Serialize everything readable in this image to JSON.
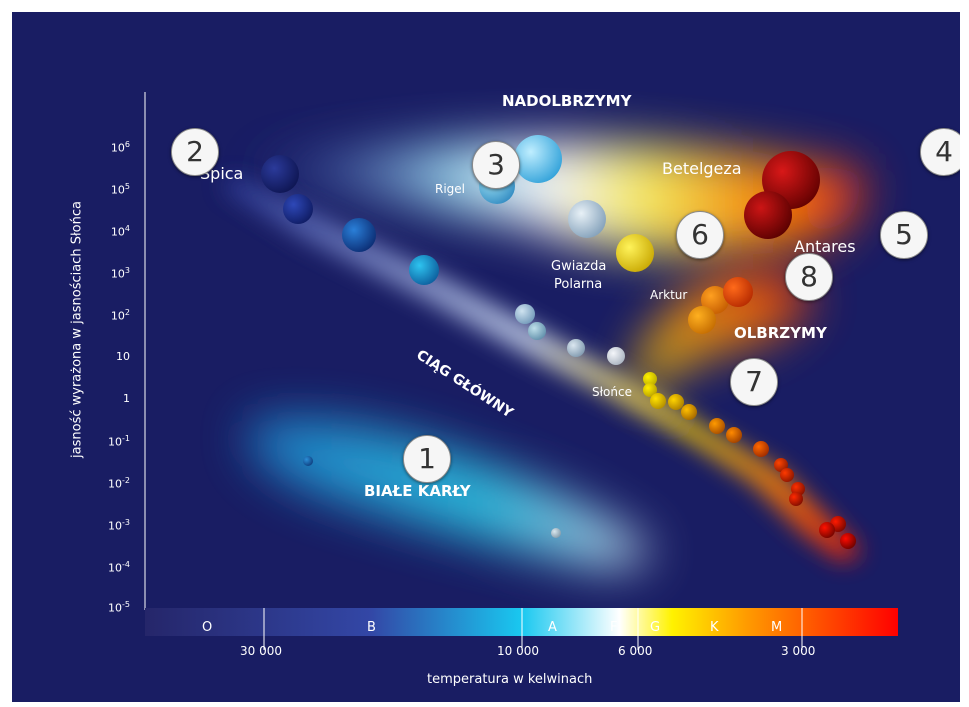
{
  "y_axis_label": "jasność wyrażona w jasnościach Słońca",
  "x_axis_label": "temperatura w kelwinach",
  "y_ticks": [
    {
      "base": "10",
      "exp": "6"
    },
    {
      "base": "10",
      "exp": "5"
    },
    {
      "base": "10",
      "exp": "4"
    },
    {
      "base": "10",
      "exp": "3"
    },
    {
      "base": "10",
      "exp": "2"
    },
    {
      "base": "10",
      "exp": ""
    },
    {
      "base": "1",
      "exp": ""
    },
    {
      "base": "10",
      "exp": "-1"
    },
    {
      "base": "10",
      "exp": "-2"
    },
    {
      "base": "10",
      "exp": "-3"
    },
    {
      "base": "10",
      "exp": "-4"
    },
    {
      "base": "10",
      "exp": "-5"
    }
  ],
  "x_ticks": [
    "30 000",
    "10 000",
    "6 000",
    "3 000"
  ],
  "spectral_classes": [
    "O",
    "B",
    "A",
    "F",
    "G",
    "K",
    "M"
  ],
  "regions": {
    "supergiants": "NADOLBRZYMY",
    "main_sequence": "CIĄG GŁÓWNY",
    "white_dwarfs": "BIAŁE KARŁY",
    "giants": "OLBRZYMY"
  },
  "stars": {
    "spica": "Spica",
    "rigel": "Rigel",
    "betelgeuse": "Betelgeza",
    "antares": "Antares",
    "polaris_line1": "Gwiazda",
    "polaris_line2": "Polarna",
    "arcturus": "Arktur",
    "sun": "Słońce"
  },
  "badges": [
    "1",
    "2",
    "3",
    "4",
    "5",
    "6",
    "7",
    "8"
  ],
  "colors": {
    "background": "#191d63",
    "scale": [
      "#25266a",
      "#3347a6",
      "#19c8f0",
      "#ffffff",
      "#fff200",
      "#ff9a00",
      "#ff0000"
    ]
  }
}
